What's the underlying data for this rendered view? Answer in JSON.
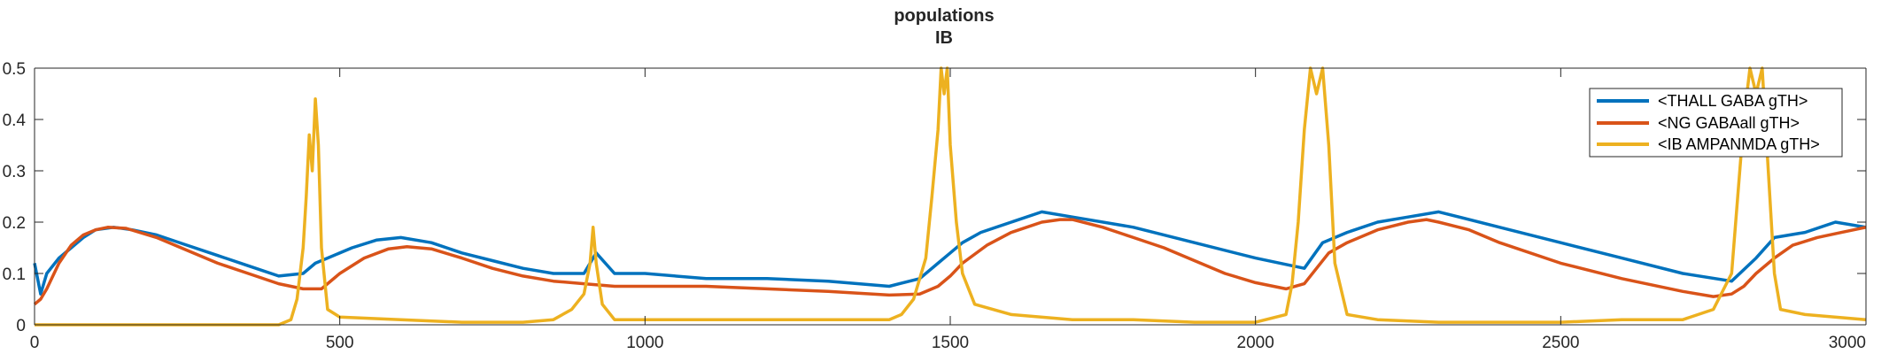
{
  "chart_data": {
    "type": "line",
    "title": "populations",
    "subtitle": "IB",
    "xlabel": "",
    "ylabel": "",
    "xlim": [
      0,
      3000
    ],
    "ylim": [
      0,
      0.5
    ],
    "x_ticks": [
      0,
      500,
      1000,
      1500,
      2000,
      2500,
      3000
    ],
    "x_tick_labels": [
      "0",
      "500",
      "1000",
      "1500",
      "2000",
      "2500",
      "3000"
    ],
    "y_ticks": [
      0,
      0.1,
      0.2,
      0.3,
      0.4,
      0.5
    ],
    "y_tick_labels": [
      "0",
      "0.1",
      "0.2",
      "0.3",
      "0.4",
      "0.5"
    ],
    "grid": false,
    "legend_position": "top-right",
    "series": [
      {
        "name": "<THALL GABA gTH>",
        "color": "#0072BD",
        "x": [
          0,
          10,
          20,
          40,
          60,
          80,
          100,
          130,
          160,
          200,
          250,
          300,
          350,
          400,
          440,
          460,
          480,
          520,
          560,
          600,
          650,
          700,
          750,
          800,
          850,
          900,
          920,
          950,
          1000,
          1100,
          1200,
          1300,
          1400,
          1450,
          1480,
          1500,
          1520,
          1550,
          1600,
          1650,
          1700,
          1800,
          1900,
          2000,
          2080,
          2110,
          2150,
          2200,
          2250,
          2300,
          2400,
          2500,
          2600,
          2700,
          2780,
          2820,
          2850,
          2900,
          2950,
          3000
        ],
        "y": [
          0.12,
          0.06,
          0.1,
          0.13,
          0.15,
          0.17,
          0.185,
          0.19,
          0.185,
          0.175,
          0.155,
          0.135,
          0.115,
          0.095,
          0.1,
          0.12,
          0.13,
          0.15,
          0.165,
          0.17,
          0.16,
          0.14,
          0.125,
          0.11,
          0.1,
          0.1,
          0.14,
          0.1,
          0.1,
          0.09,
          0.09,
          0.085,
          0.075,
          0.09,
          0.12,
          0.14,
          0.16,
          0.18,
          0.2,
          0.22,
          0.21,
          0.19,
          0.16,
          0.13,
          0.11,
          0.16,
          0.18,
          0.2,
          0.21,
          0.22,
          0.19,
          0.16,
          0.13,
          0.1,
          0.085,
          0.13,
          0.17,
          0.18,
          0.2,
          0.19
        ]
      },
      {
        "name": "<NG GABAall gTH>",
        "color": "#D95319",
        "x": [
          0,
          10,
          20,
          40,
          60,
          80,
          100,
          120,
          150,
          200,
          250,
          300,
          350,
          400,
          440,
          470,
          500,
          540,
          580,
          610,
          650,
          700,
          750,
          800,
          850,
          900,
          950,
          1000,
          1100,
          1200,
          1300,
          1400,
          1450,
          1480,
          1500,
          1520,
          1560,
          1600,
          1650,
          1680,
          1700,
          1750,
          1800,
          1850,
          1900,
          1950,
          2000,
          2050,
          2080,
          2100,
          2120,
          2150,
          2200,
          2250,
          2280,
          2300,
          2350,
          2400,
          2500,
          2600,
          2700,
          2750,
          2780,
          2800,
          2820,
          2850,
          2880,
          2920,
          2960,
          3000
        ],
        "y": [
          0.04,
          0.05,
          0.07,
          0.12,
          0.155,
          0.175,
          0.185,
          0.19,
          0.188,
          0.17,
          0.145,
          0.12,
          0.1,
          0.08,
          0.07,
          0.07,
          0.1,
          0.13,
          0.148,
          0.152,
          0.148,
          0.13,
          0.11,
          0.095,
          0.085,
          0.08,
          0.075,
          0.075,
          0.075,
          0.07,
          0.065,
          0.058,
          0.06,
          0.075,
          0.095,
          0.12,
          0.155,
          0.18,
          0.2,
          0.205,
          0.205,
          0.19,
          0.17,
          0.15,
          0.125,
          0.1,
          0.082,
          0.07,
          0.08,
          0.11,
          0.14,
          0.16,
          0.185,
          0.2,
          0.205,
          0.2,
          0.185,
          0.16,
          0.12,
          0.09,
          0.065,
          0.055,
          0.06,
          0.075,
          0.1,
          0.13,
          0.155,
          0.17,
          0.18,
          0.19
        ]
      },
      {
        "name": "<IB AMPANMDA gTH>",
        "color": "#EDB120",
        "x": [
          0,
          100,
          200,
          300,
          400,
          420,
          430,
          440,
          445,
          450,
          455,
          460,
          465,
          470,
          480,
          500,
          600,
          700,
          800,
          850,
          880,
          900,
          910,
          915,
          920,
          930,
          950,
          1000,
          1100,
          1200,
          1300,
          1400,
          1420,
          1440,
          1460,
          1470,
          1480,
          1485,
          1490,
          1495,
          1500,
          1510,
          1520,
          1540,
          1600,
          1700,
          1800,
          1900,
          2000,
          2050,
          2060,
          2070,
          2080,
          2090,
          2100,
          2110,
          2120,
          2130,
          2150,
          2200,
          2300,
          2400,
          2500,
          2600,
          2700,
          2750,
          2780,
          2790,
          2800,
          2810,
          2820,
          2830,
          2840,
          2850,
          2860,
          2900,
          3000
        ],
        "y": [
          0,
          0,
          0,
          0,
          0,
          0.01,
          0.05,
          0.15,
          0.25,
          0.37,
          0.3,
          0.44,
          0.35,
          0.15,
          0.03,
          0.015,
          0.01,
          0.005,
          0.005,
          0.01,
          0.03,
          0.06,
          0.12,
          0.19,
          0.12,
          0.04,
          0.01,
          0.01,
          0.01,
          0.01,
          0.01,
          0.01,
          0.02,
          0.05,
          0.13,
          0.25,
          0.38,
          0.5,
          0.45,
          0.5,
          0.35,
          0.2,
          0.1,
          0.04,
          0.02,
          0.01,
          0.01,
          0.005,
          0.005,
          0.02,
          0.08,
          0.2,
          0.38,
          0.5,
          0.45,
          0.5,
          0.35,
          0.12,
          0.02,
          0.01,
          0.005,
          0.005,
          0.005,
          0.01,
          0.01,
          0.03,
          0.1,
          0.25,
          0.4,
          0.5,
          0.45,
          0.5,
          0.3,
          0.1,
          0.03,
          0.02,
          0.01
        ]
      }
    ]
  }
}
